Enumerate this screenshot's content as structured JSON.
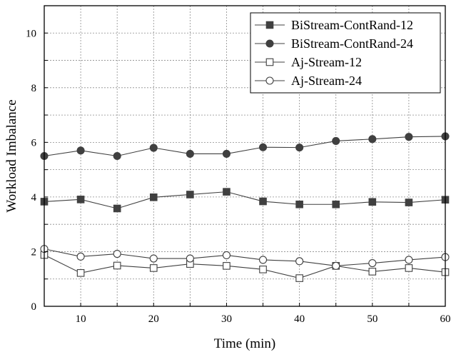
{
  "chart_data": {
    "type": "line",
    "title": "",
    "xlabel": "Time (min)",
    "ylabel": "Workload Imbalance",
    "xlim": [
      5,
      60
    ],
    "ylim": [
      0,
      11
    ],
    "x_ticks": [
      10,
      20,
      30,
      40,
      50,
      60
    ],
    "y_ticks": [
      0,
      2,
      4,
      6,
      8,
      10
    ],
    "grid": true,
    "legend_position": "top-right",
    "x": [
      5,
      10,
      15,
      20,
      25,
      30,
      35,
      40,
      45,
      50,
      55,
      60
    ],
    "series": [
      {
        "name": "BiStream-ContRand-12",
        "marker": "filled-square",
        "color": "#404040",
        "values": [
          3.83,
          3.91,
          3.58,
          3.99,
          4.09,
          4.19,
          3.84,
          3.73,
          3.73,
          3.82,
          3.8,
          3.9
        ]
      },
      {
        "name": "BiStream-ContRand-24",
        "marker": "filled-circle",
        "color": "#404040",
        "values": [
          5.5,
          5.7,
          5.5,
          5.8,
          5.58,
          5.58,
          5.82,
          5.81,
          6.05,
          6.12,
          6.2,
          6.22
        ]
      },
      {
        "name": "Aj-Stream-12",
        "marker": "open-square",
        "color": "#404040",
        "values": [
          1.88,
          1.22,
          1.49,
          1.4,
          1.55,
          1.48,
          1.35,
          1.03,
          1.48,
          1.27,
          1.4,
          1.25
        ]
      },
      {
        "name": "Aj-Stream-24",
        "marker": "open-circle",
        "color": "#404040",
        "values": [
          2.1,
          1.82,
          1.92,
          1.75,
          1.75,
          1.87,
          1.7,
          1.65,
          1.48,
          1.58,
          1.7,
          1.8
        ]
      }
    ]
  }
}
